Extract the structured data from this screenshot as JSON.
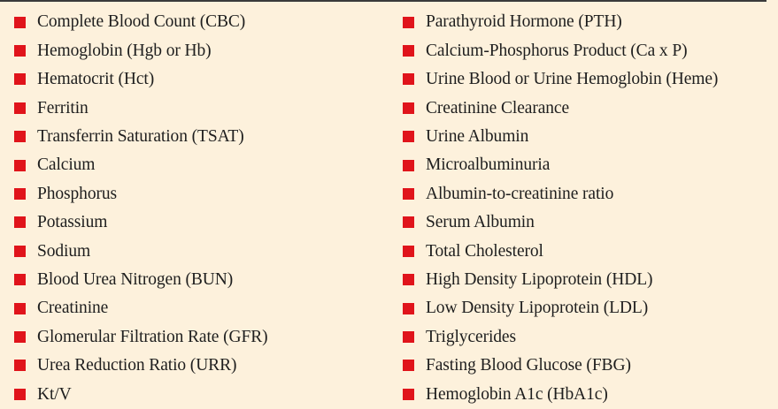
{
  "colors": {
    "background": "#fdf1dc",
    "bullet": "#e0141b",
    "text": "#1e1e1e",
    "rule": "#3a3a3a"
  },
  "left_column": [
    "Complete Blood Count (CBC)",
    "Hemoglobin (Hgb or Hb)",
    "Hematocrit (Hct)",
    "Ferritin",
    "Transferrin Saturation (TSAT)",
    "Calcium",
    "Phosphorus",
    "Potassium",
    "Sodium",
    "Blood Urea Nitrogen (BUN)",
    "Creatinine",
    "Glomerular Filtration Rate (GFR)",
    "Urea Reduction Ratio (URR)",
    "Kt/V"
  ],
  "right_column": [
    "Parathyroid Hormone (PTH)",
    "Calcium-Phosphorus Product (Ca x P)",
    "Urine Blood or Urine Hemoglobin (Heme)",
    "Creatinine Clearance",
    "Urine Albumin",
    "Microalbuminuria",
    "Albumin-to-creatinine ratio",
    "Serum Albumin",
    "Total Cholesterol",
    "High Density Lipoprotein (HDL)",
    "Low Density Lipoprotein (LDL)",
    "Triglycerides",
    "Fasting Blood Glucose (FBG)",
    "Hemoglobin A1c (HbA1c)"
  ]
}
